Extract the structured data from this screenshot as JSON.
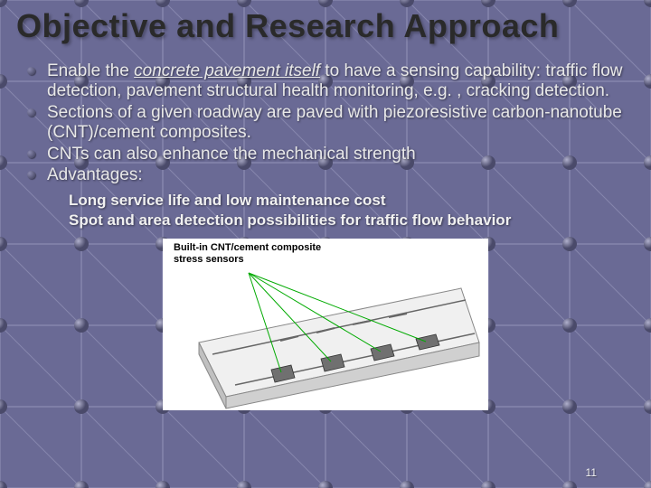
{
  "title": "Objective and Research Approach",
  "bullets": [
    {
      "pre": "Enable the ",
      "em": "concrete pavement itself",
      "post": " to have a sensing capability: traffic flow detection, pavement structural health monitoring, e.g. , cracking detection."
    },
    {
      "text": "Sections of a given roadway are paved with piezoresistive carbon-nanotube (CNT)/cement composites."
    },
    {
      "text": "CNTs can also enhance the mechanical strength"
    },
    {
      "text": "Advantages:"
    }
  ],
  "sub_bullets": [
    "Long service life and low maintenance cost",
    "Spot and area detection possibilities for traffic flow behavior"
  ],
  "figure": {
    "title_line1": "Built-in CNT/cement composite",
    "title_line2": "stress sensors",
    "road_color": "#f0f0f0",
    "sensor_color": "#707070",
    "lead_color": "#00aa00",
    "lane_line_color": "#666666"
  },
  "page_number": "11",
  "background": {
    "grid_color": "#8686ad",
    "sphere_light": "#b0b0cc",
    "sphere_dark": "#4a4a6a",
    "grid_rows": 7,
    "grid_cols": 9,
    "sphere_radius": 8
  }
}
